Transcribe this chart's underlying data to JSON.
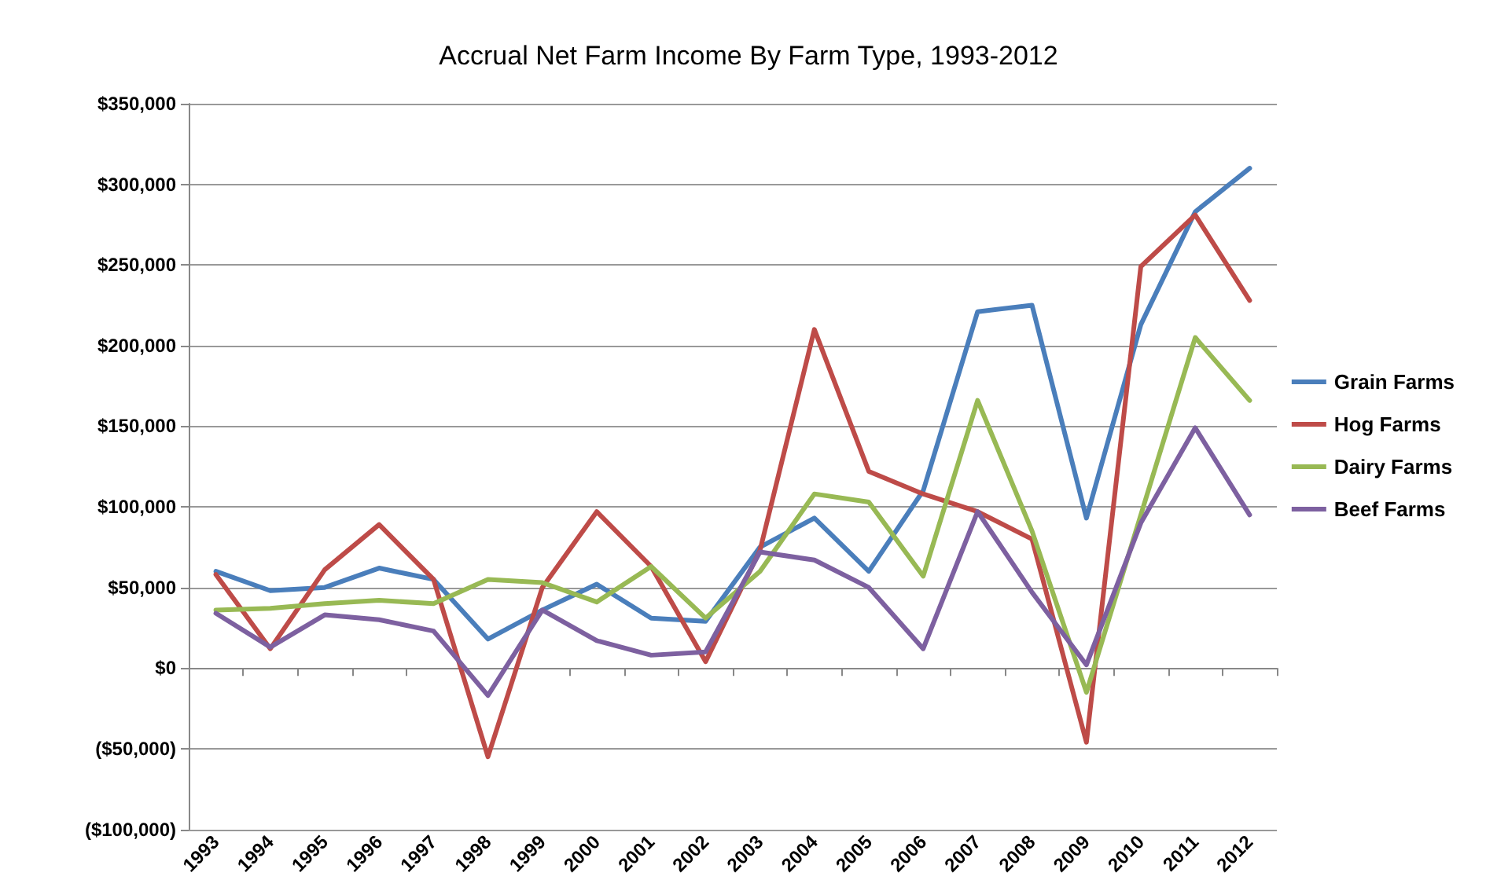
{
  "chart_data": {
    "type": "line",
    "title": "Accrual Net Farm Income By Farm Type, 1993-2012",
    "categories": [
      "1993",
      "1994",
      "1995",
      "1996",
      "1997",
      "1998",
      "1999",
      "2000",
      "2001",
      "2002",
      "2003",
      "2004",
      "2005",
      "2006",
      "2007",
      "2008",
      "2009",
      "2010",
      "2011",
      "2012"
    ],
    "series": [
      {
        "name": "Grain Farms",
        "color": "#4a7ebb",
        "values": [
          60000,
          48000,
          50000,
          62000,
          55000,
          18000,
          36000,
          52000,
          31000,
          29000,
          75000,
          93000,
          60000,
          110000,
          221000,
          225000,
          93000,
          213000,
          283000,
          310000
        ]
      },
      {
        "name": "Hog Farms",
        "color": "#be4b48",
        "values": [
          58000,
          12000,
          61000,
          89000,
          55000,
          -55000,
          50000,
          97000,
          63000,
          4000,
          73000,
          210000,
          122000,
          108000,
          97000,
          80000,
          -46000,
          249000,
          281000,
          228000
        ]
      },
      {
        "name": "Dairy Farms",
        "color": "#98b954",
        "values": [
          36000,
          37000,
          40000,
          42000,
          40000,
          55000,
          53000,
          41000,
          63000,
          31000,
          60000,
          108000,
          103000,
          57000,
          166000,
          85000,
          -15000,
          95000,
          205000,
          166000
        ]
      },
      {
        "name": "Beef Farms",
        "color": "#7d60a0",
        "values": [
          34000,
          13000,
          33000,
          30000,
          23000,
          -17000,
          36000,
          17000,
          8000,
          10000,
          72000,
          67000,
          50000,
          12000,
          97000,
          47000,
          2000,
          90000,
          149000,
          95000
        ]
      }
    ],
    "ylim": [
      -100000,
      350000
    ],
    "yticks": [
      {
        "value": -100000,
        "label": "($100,000)"
      },
      {
        "value": -50000,
        "label": "($50,000)"
      },
      {
        "value": 0,
        "label": "$0"
      },
      {
        "value": 50000,
        "label": "$50,000"
      },
      {
        "value": 100000,
        "label": "$100,000"
      },
      {
        "value": 150000,
        "label": "$150,000"
      },
      {
        "value": 200000,
        "label": "$200,000"
      },
      {
        "value": 250000,
        "label": "$250,000"
      },
      {
        "value": 300000,
        "label": "$300,000"
      },
      {
        "value": 350000,
        "label": "$350,000"
      }
    ],
    "grid": "y",
    "legend": "right",
    "marker": "none",
    "line_style": "solid"
  }
}
